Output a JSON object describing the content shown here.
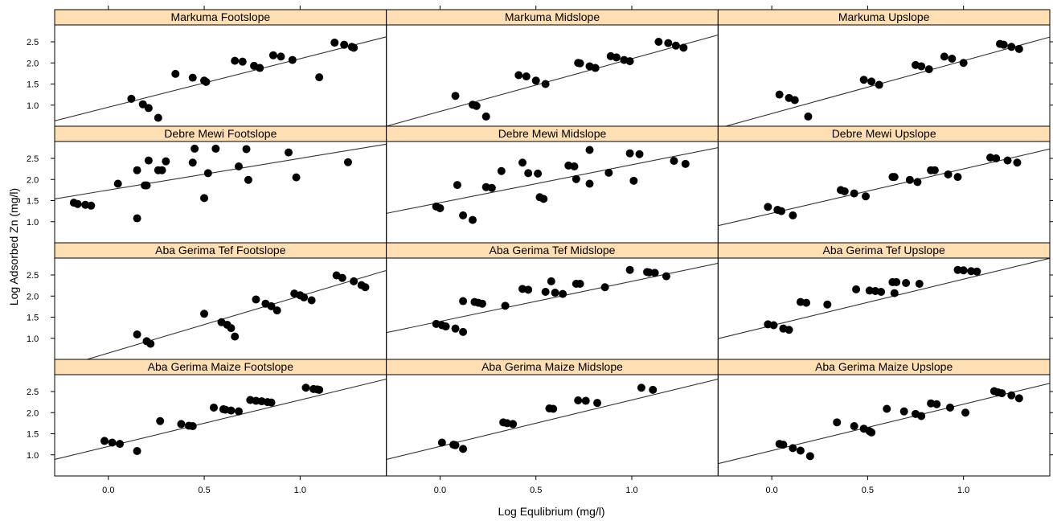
{
  "chart_data": {
    "type": "scatter",
    "xlabel": "Log Equlibrium (mg/l)",
    "ylabel": "Log Adsorbed Zn (mg/l)",
    "xlim": [
      -0.28,
      1.45
    ],
    "ylim": [
      0.5,
      2.9
    ],
    "xticks": [
      0.0,
      0.5,
      1.0
    ],
    "xtick_labels": [
      "0.0",
      "0.5",
      "1.0"
    ],
    "yticks": [
      1.0,
      1.5,
      2.0,
      2.5
    ],
    "ytick_labels": [
      "1.0",
      "1.5",
      "2.0",
      "2.5"
    ],
    "grid": false,
    "layout": {
      "rows": 4,
      "cols": 3
    },
    "strip_color": "#ffdfb3",
    "point_color": "#000000",
    "panels": [
      {
        "title": "Markuma  Footslope",
        "line": {
          "intercept": 0.95,
          "slope": 1.15
        },
        "points": [
          [
            0.12,
            1.15
          ],
          [
            0.18,
            1.02
          ],
          [
            0.21,
            0.93
          ],
          [
            0.26,
            0.7
          ],
          [
            0.35,
            1.74
          ],
          [
            0.44,
            1.65
          ],
          [
            0.5,
            1.58
          ],
          [
            0.51,
            1.55
          ],
          [
            0.66,
            2.05
          ],
          [
            0.7,
            2.03
          ],
          [
            0.76,
            1.93
          ],
          [
            0.79,
            1.88
          ],
          [
            0.86,
            2.18
          ],
          [
            0.9,
            2.15
          ],
          [
            0.96,
            2.07
          ],
          [
            1.1,
            1.66
          ],
          [
            1.18,
            2.48
          ],
          [
            1.23,
            2.43
          ],
          [
            1.27,
            2.38
          ],
          [
            1.28,
            2.36
          ]
        ]
      },
      {
        "title": "Markuma  Midslope",
        "line": {
          "intercept": 0.85,
          "slope": 1.25
        },
        "points": [
          [
            0.08,
            1.22
          ],
          [
            0.17,
            1.01
          ],
          [
            0.19,
            0.98
          ],
          [
            0.24,
            0.73
          ],
          [
            0.41,
            1.71
          ],
          [
            0.45,
            1.68
          ],
          [
            0.5,
            1.58
          ],
          [
            0.55,
            1.5
          ],
          [
            0.72,
            2.0
          ],
          [
            0.73,
            1.99
          ],
          [
            0.78,
            1.92
          ],
          [
            0.81,
            1.88
          ],
          [
            0.89,
            2.16
          ],
          [
            0.92,
            2.13
          ],
          [
            0.96,
            2.07
          ],
          [
            0.99,
            2.04
          ],
          [
            1.14,
            2.5
          ],
          [
            1.19,
            2.47
          ],
          [
            1.23,
            2.41
          ],
          [
            1.27,
            2.36
          ]
        ]
      },
      {
        "title": "Markuma  Upslope",
        "line": {
          "intercept": 0.8,
          "slope": 1.25
        },
        "points": [
          [
            0.04,
            1.25
          ],
          [
            0.09,
            1.17
          ],
          [
            0.12,
            1.12
          ],
          [
            0.19,
            0.73
          ],
          [
            0.48,
            1.6
          ],
          [
            0.52,
            1.56
          ],
          [
            0.56,
            1.48
          ],
          [
            0.75,
            1.95
          ],
          [
            0.78,
            1.92
          ],
          [
            0.82,
            1.85
          ],
          [
            0.9,
            2.15
          ],
          [
            0.94,
            2.1
          ],
          [
            1.0,
            2.0
          ],
          [
            1.19,
            2.45
          ],
          [
            1.21,
            2.43
          ],
          [
            1.25,
            2.38
          ],
          [
            1.29,
            2.33
          ]
        ]
      },
      {
        "title": "Debre Mewi  Footslope",
        "line": {
          "intercept": 1.75,
          "slope": 0.75
        },
        "points": [
          [
            -0.18,
            1.45
          ],
          [
            -0.16,
            1.42
          ],
          [
            -0.12,
            1.4
          ],
          [
            -0.09,
            1.38
          ],
          [
            0.05,
            1.9
          ],
          [
            0.15,
            1.08
          ],
          [
            0.15,
            2.22
          ],
          [
            0.19,
            1.86
          ],
          [
            0.2,
            1.86
          ],
          [
            0.21,
            2.45
          ],
          [
            0.26,
            2.22
          ],
          [
            0.28,
            2.22
          ],
          [
            0.3,
            2.43
          ],
          [
            0.44,
            2.4
          ],
          [
            0.45,
            2.73
          ],
          [
            0.5,
            1.56
          ],
          [
            0.52,
            2.15
          ],
          [
            0.56,
            2.73
          ],
          [
            0.68,
            2.31
          ],
          [
            0.72,
            2.72
          ],
          [
            0.73,
            1.99
          ],
          [
            0.94,
            2.64
          ],
          [
            0.98,
            2.05
          ],
          [
            1.25,
            2.41
          ]
        ]
      },
      {
        "title": "Debre Mewi  Midslope",
        "line": {
          "intercept": 1.45,
          "slope": 0.9
        },
        "points": [
          [
            -0.02,
            1.36
          ],
          [
            0.0,
            1.32
          ],
          [
            0.09,
            1.87
          ],
          [
            0.12,
            1.15
          ],
          [
            0.17,
            1.04
          ],
          [
            0.24,
            1.82
          ],
          [
            0.27,
            1.8
          ],
          [
            0.32,
            2.2
          ],
          [
            0.43,
            2.4
          ],
          [
            0.46,
            2.15
          ],
          [
            0.51,
            2.14
          ],
          [
            0.52,
            1.58
          ],
          [
            0.54,
            1.54
          ],
          [
            0.67,
            2.33
          ],
          [
            0.7,
            2.31
          ],
          [
            0.71,
            2.01
          ],
          [
            0.78,
            1.9
          ],
          [
            0.78,
            2.7
          ],
          [
            0.88,
            2.16
          ],
          [
            0.99,
            2.62
          ],
          [
            1.01,
            1.97
          ],
          [
            1.04,
            2.6
          ],
          [
            1.22,
            2.44
          ],
          [
            1.28,
            2.37
          ]
        ]
      },
      {
        "title": "Debre Mewi  Upslope",
        "line": {
          "intercept": 1.2,
          "slope": 1.05
        },
        "points": [
          [
            -0.02,
            1.35
          ],
          [
            0.03,
            1.28
          ],
          [
            0.05,
            1.25
          ],
          [
            0.11,
            1.15
          ],
          [
            0.36,
            1.75
          ],
          [
            0.38,
            1.72
          ],
          [
            0.43,
            1.67
          ],
          [
            0.49,
            1.6
          ],
          [
            0.63,
            2.06
          ],
          [
            0.64,
            2.06
          ],
          [
            0.72,
            1.99
          ],
          [
            0.76,
            1.94
          ],
          [
            0.83,
            2.22
          ],
          [
            0.85,
            2.22
          ],
          [
            0.92,
            2.12
          ],
          [
            0.97,
            2.06
          ],
          [
            1.14,
            2.52
          ],
          [
            1.17,
            2.5
          ],
          [
            1.23,
            2.45
          ],
          [
            1.28,
            2.4
          ]
        ]
      },
      {
        "title": "Aba Gerima  Tef  Footslope",
        "line": {
          "intercept": 0.65,
          "slope": 1.35
        },
        "points": [
          [
            0.15,
            1.09
          ],
          [
            0.2,
            0.93
          ],
          [
            0.22,
            0.87
          ],
          [
            0.5,
            1.58
          ],
          [
            0.59,
            1.38
          ],
          [
            0.62,
            1.32
          ],
          [
            0.64,
            1.24
          ],
          [
            0.66,
            1.04
          ],
          [
            0.77,
            1.92
          ],
          [
            0.82,
            1.82
          ],
          [
            0.85,
            1.76
          ],
          [
            0.88,
            1.66
          ],
          [
            0.97,
            2.06
          ],
          [
            1.0,
            2.02
          ],
          [
            1.02,
            1.97
          ],
          [
            1.06,
            1.9
          ],
          [
            1.19,
            2.49
          ],
          [
            1.22,
            2.43
          ],
          [
            1.28,
            2.35
          ],
          [
            1.32,
            2.26
          ],
          [
            1.34,
            2.21
          ]
        ]
      },
      {
        "title": "Aba Gerima  Tef  Midslope",
        "line": {
          "intercept": 1.4,
          "slope": 0.95
        },
        "points": [
          [
            -0.02,
            1.34
          ],
          [
            0.01,
            1.31
          ],
          [
            0.03,
            1.28
          ],
          [
            0.08,
            1.23
          ],
          [
            0.12,
            1.15
          ],
          [
            0.12,
            1.88
          ],
          [
            0.18,
            1.86
          ],
          [
            0.2,
            1.84
          ],
          [
            0.22,
            1.82
          ],
          [
            0.34,
            1.77
          ],
          [
            0.43,
            2.17
          ],
          [
            0.46,
            2.15
          ],
          [
            0.55,
            2.1
          ],
          [
            0.6,
            2.08
          ],
          [
            0.58,
            2.35
          ],
          [
            0.64,
            2.05
          ],
          [
            0.71,
            2.29
          ],
          [
            0.73,
            2.29
          ],
          [
            0.86,
            2.21
          ],
          [
            0.99,
            2.62
          ],
          [
            1.08,
            2.57
          ],
          [
            1.09,
            2.56
          ],
          [
            1.12,
            2.55
          ],
          [
            1.18,
            2.47
          ]
        ]
      },
      {
        "title": "Aba Gerima  Tef  Upslope",
        "line": {
          "intercept": 1.3,
          "slope": 1.1
        },
        "points": [
          [
            -0.02,
            1.33
          ],
          [
            0.01,
            1.31
          ],
          [
            0.06,
            1.23
          ],
          [
            0.09,
            1.2
          ],
          [
            0.15,
            1.86
          ],
          [
            0.18,
            1.84
          ],
          [
            0.29,
            1.8
          ],
          [
            0.44,
            2.16
          ],
          [
            0.51,
            2.13
          ],
          [
            0.54,
            2.12
          ],
          [
            0.57,
            2.1
          ],
          [
            0.63,
            2.33
          ],
          [
            0.65,
            2.33
          ],
          [
            0.64,
            2.07
          ],
          [
            0.7,
            2.31
          ],
          [
            0.77,
            2.29
          ],
          [
            0.97,
            2.62
          ],
          [
            1.0,
            2.61
          ],
          [
            1.04,
            2.59
          ],
          [
            1.07,
            2.58
          ]
        ]
      },
      {
        "title": "Aba Gerima  Maize  Footslope",
        "line": {
          "intercept": 1.2,
          "slope": 1.1
        },
        "points": [
          [
            -0.02,
            1.33
          ],
          [
            0.02,
            1.29
          ],
          [
            0.06,
            1.26
          ],
          [
            0.15,
            1.09
          ],
          [
            0.27,
            1.8
          ],
          [
            0.38,
            1.73
          ],
          [
            0.42,
            1.69
          ],
          [
            0.44,
            1.68
          ],
          [
            0.55,
            2.12
          ],
          [
            0.6,
            2.08
          ],
          [
            0.61,
            2.07
          ],
          [
            0.64,
            2.05
          ],
          [
            0.68,
            2.03
          ],
          [
            0.74,
            2.3
          ],
          [
            0.77,
            2.28
          ],
          [
            0.8,
            2.27
          ],
          [
            0.83,
            2.25
          ],
          [
            0.85,
            2.24
          ],
          [
            1.03,
            2.59
          ],
          [
            1.07,
            2.56
          ],
          [
            1.09,
            2.55
          ],
          [
            1.1,
            2.54
          ]
        ]
      },
      {
        "title": "Aba Gerima  Maize  Midslope",
        "line": {
          "intercept": 1.2,
          "slope": 1.1
        },
        "points": [
          [
            0.01,
            1.29
          ],
          [
            0.07,
            1.24
          ],
          [
            0.08,
            1.23
          ],
          [
            0.12,
            1.14
          ],
          [
            0.33,
            1.77
          ],
          [
            0.35,
            1.75
          ],
          [
            0.38,
            1.73
          ],
          [
            0.57,
            2.1
          ],
          [
            0.59,
            2.09
          ],
          [
            0.72,
            2.29
          ],
          [
            0.76,
            2.28
          ],
          [
            0.82,
            2.23
          ],
          [
            1.05,
            2.59
          ],
          [
            1.11,
            2.54
          ]
        ]
      },
      {
        "title": "Aba Gerima  Maize  Upslope",
        "line": {
          "intercept": 1.1,
          "slope": 1.1
        },
        "points": [
          [
            0.04,
            1.26
          ],
          [
            0.06,
            1.24
          ],
          [
            0.11,
            1.16
          ],
          [
            0.15,
            1.1
          ],
          [
            0.2,
            0.97
          ],
          [
            0.34,
            1.77
          ],
          [
            0.43,
            1.68
          ],
          [
            0.48,
            1.62
          ],
          [
            0.51,
            1.56
          ],
          [
            0.52,
            1.53
          ],
          [
            0.6,
            2.09
          ],
          [
            0.69,
            2.03
          ],
          [
            0.75,
            1.97
          ],
          [
            0.78,
            1.92
          ],
          [
            0.83,
            2.22
          ],
          [
            0.86,
            2.2
          ],
          [
            0.93,
            2.12
          ],
          [
            1.01,
            2.0
          ],
          [
            1.16,
            2.51
          ],
          [
            1.18,
            2.48
          ],
          [
            1.2,
            2.46
          ],
          [
            1.25,
            2.41
          ],
          [
            1.29,
            2.34
          ]
        ]
      }
    ]
  }
}
